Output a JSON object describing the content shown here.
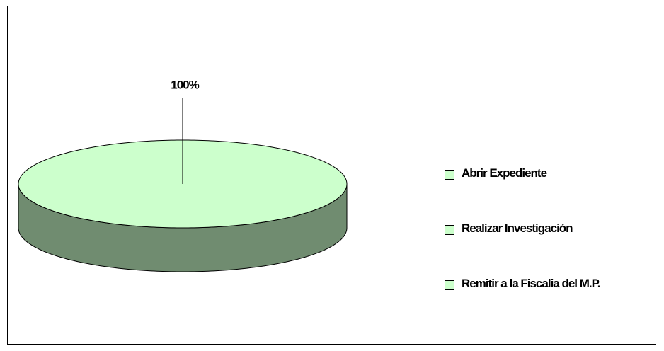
{
  "chart_data": {
    "type": "pie",
    "categories": [
      "Abrir Expediente",
      "Realizar Investigación",
      "Remitir a la Fiscalia del M.P."
    ],
    "values": [
      100,
      0,
      0
    ],
    "value_labels": [
      "100%",
      null,
      null
    ],
    "colors": [
      "#ccffcc",
      "#ccffcc",
      "#ccffcc"
    ],
    "legend": "right"
  }
}
